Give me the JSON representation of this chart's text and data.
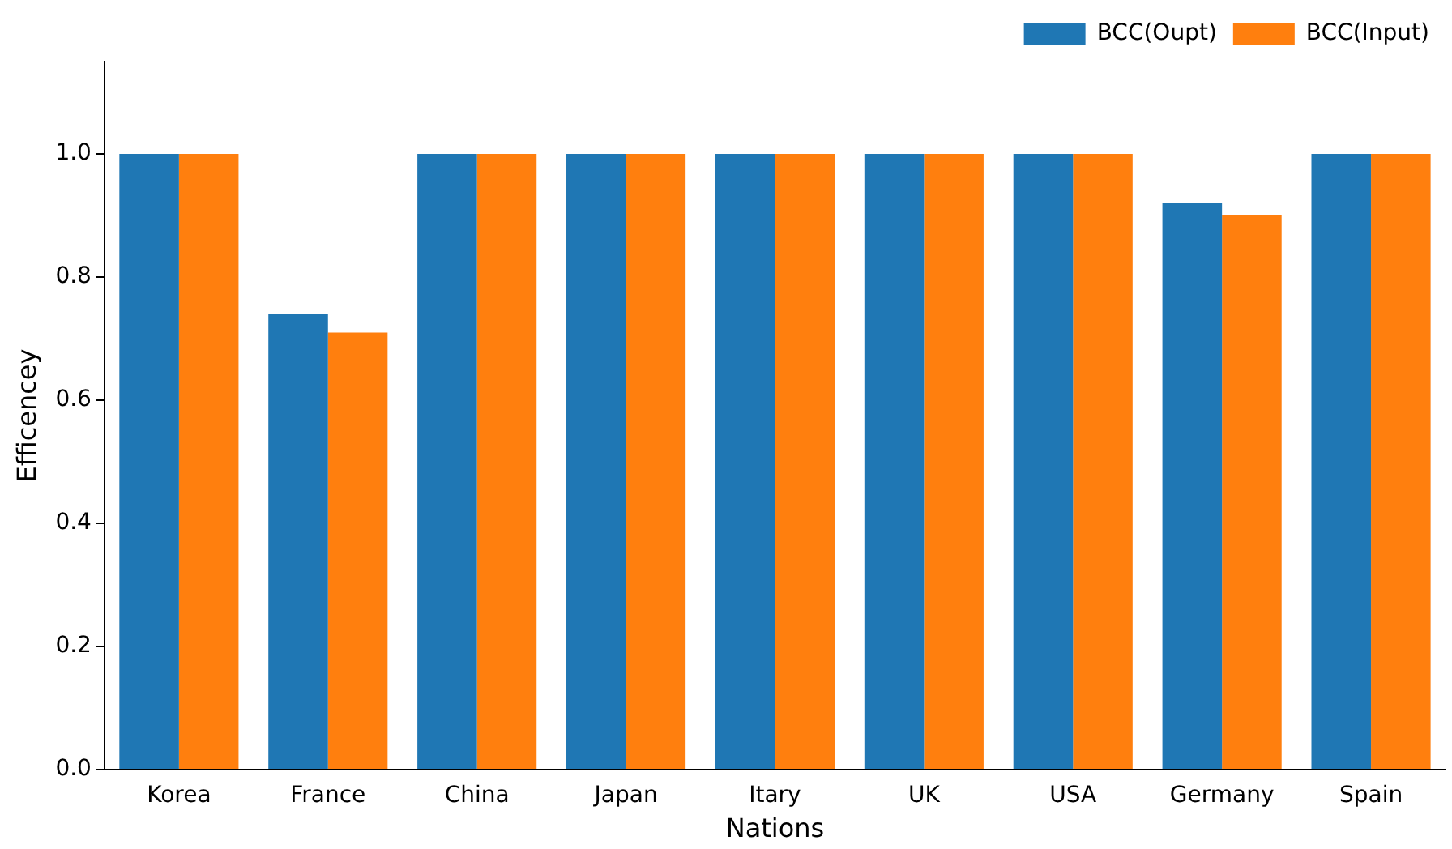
{
  "chart_data": {
    "type": "bar",
    "xlabel": "Nations",
    "ylabel": "Efficencey",
    "categories": [
      "Korea",
      "France",
      "China",
      "Japan",
      "Itary",
      "UK",
      "USA",
      "Germany",
      "Spain"
    ],
    "series": [
      {
        "name": "BCC(Oupt)",
        "color": "#1f77b4",
        "values": [
          1.0,
          0.74,
          1.0,
          1.0,
          1.0,
          1.0,
          1.0,
          0.92,
          1.0
        ]
      },
      {
        "name": "BCC(Input)",
        "color": "#ff7f0e",
        "values": [
          1.0,
          0.71,
          1.0,
          1.0,
          1.0,
          1.0,
          1.0,
          0.9,
          1.0
        ]
      }
    ],
    "ylim": [
      0,
      1.15
    ],
    "yticks": [
      {
        "value": 0,
        "label": "0.0"
      },
      0.2,
      0.4,
      0.6,
      0.8,
      {
        "value": 1,
        "label": "1.0"
      }
    ],
    "grid": false,
    "legend": "top right"
  }
}
